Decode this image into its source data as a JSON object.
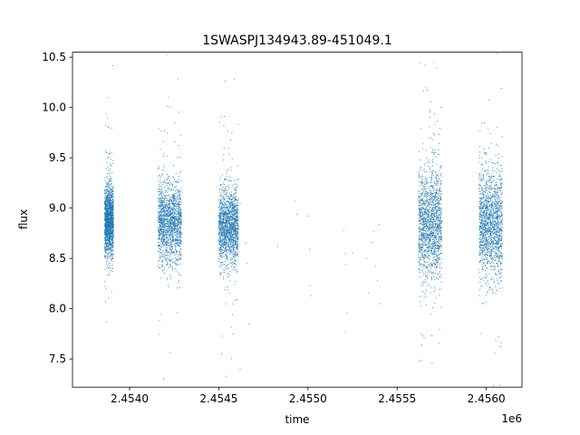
{
  "chart_data": {
    "type": "scatter",
    "title": "1SWASPJ134943.89-451049.1",
    "xlabel": "time",
    "ylabel": "flux",
    "x_offset_label": "1e6",
    "xlim": [
      2.45368,
      2.4562
    ],
    "ylim": [
      7.22,
      10.55
    ],
    "x_ticks": [
      2.454,
      2.4545,
      2.455,
      2.4555,
      2.456
    ],
    "x_tick_labels": [
      "2.4540",
      "2.4545",
      "2.4550",
      "2.4555",
      "2.4560"
    ],
    "y_ticks": [
      7.5,
      8.0,
      8.5,
      9.0,
      9.5,
      10.0,
      10.5
    ],
    "y_tick_labels": [
      "7.5",
      "8.0",
      "8.5",
      "9.0",
      "9.5",
      "10.0",
      "10.5"
    ],
    "grid": false,
    "marker_color": "#1f77b4",
    "series": [
      {
        "points_note_free": true,
        "clusters": [
          {
            "x_range": [
              2.45386,
              2.45391
            ],
            "y_center": 8.88,
            "y_spread": 0.42
          },
          {
            "x_range": [
              2.45416,
              2.45429
            ],
            "y_center": 8.85,
            "y_spread": 0.48
          },
          {
            "x_range": [
              2.4545,
              2.45461
            ],
            "y_center": 8.82,
            "y_spread": 0.45
          },
          {
            "x_range": [
              2.45562,
              2.45575
            ],
            "y_center": 8.85,
            "y_spread": 0.65
          },
          {
            "x_range": [
              2.45596,
              2.45609
            ],
            "y_center": 8.85,
            "y_spread": 0.65
          }
        ],
        "sparse_points": [
          [
            2.45462,
            9.05
          ],
          [
            2.45465,
            8.65
          ],
          [
            2.45466,
            8.45
          ],
          [
            2.45467,
            7.85
          ],
          [
            2.45462,
            7.4
          ],
          [
            2.45483,
            8.62
          ],
          [
            2.45493,
            9.07
          ],
          [
            2.45494,
            8.94
          ],
          [
            2.455,
            8.92
          ],
          [
            2.45501,
            8.59
          ],
          [
            2.45501,
            8.23
          ],
          [
            2.45502,
            8.13
          ],
          [
            2.4552,
            8.78
          ],
          [
            2.45521,
            8.55
          ],
          [
            2.45521,
            8.44
          ],
          [
            2.45522,
            7.96
          ],
          [
            2.45521,
            7.77
          ],
          [
            2.45525,
            8.55
          ],
          [
            2.45533,
            8.5
          ],
          [
            2.45534,
            8.16
          ],
          [
            2.45536,
            8.66
          ],
          [
            2.45537,
            8.77
          ],
          [
            2.45538,
            8.42
          ],
          [
            2.45539,
            8.28
          ],
          [
            2.4554,
            8.84
          ],
          [
            2.4554,
            8.05
          ]
        ]
      }
    ]
  }
}
